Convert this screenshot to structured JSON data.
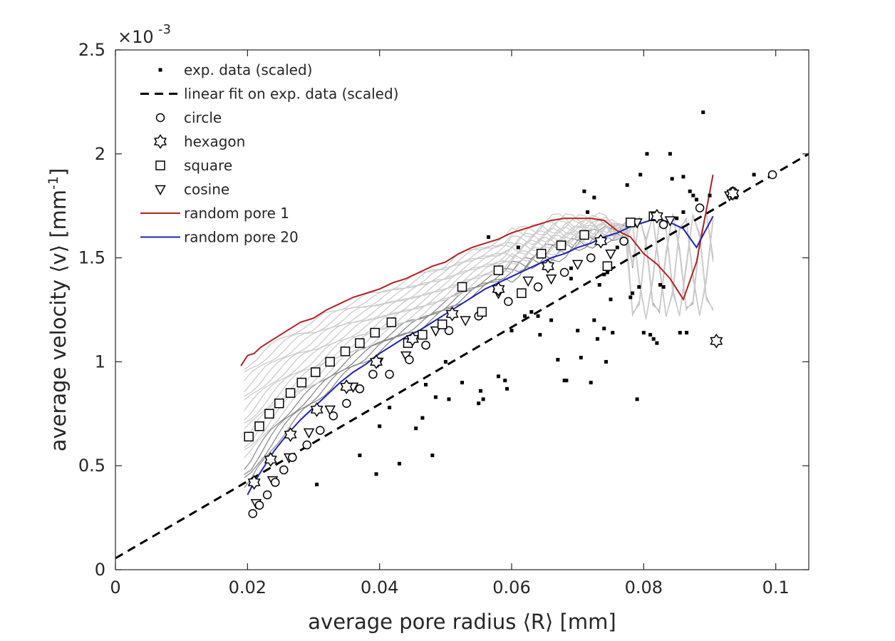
{
  "chart_data": {
    "type": "scatter",
    "xlabel": "average pore radius ⟨R⟩ [mm]",
    "ylabel_main": "average velocity ⟨v⟩ [mm",
    "ylabel_sup": "-1",
    "ylabel_end": "]",
    "exponent_prefix": "×10",
    "exponent_power": "-3",
    "xlim": [
      0,
      0.105
    ],
    "ylim": [
      0,
      2.5
    ],
    "xticks": [
      0,
      0.02,
      0.04,
      0.06,
      0.08,
      0.1
    ],
    "xtick_labels": [
      "0",
      "0.02",
      "0.04",
      "0.06",
      "0.08",
      "0.1"
    ],
    "yticks": [
      0,
      0.5,
      1,
      1.5,
      2,
      2.5
    ],
    "ytick_labels": [
      "0",
      "0.5",
      "1",
      "1.5",
      "2",
      "2.5"
    ],
    "y_scale_note": "y values in units of 1e-3",
    "legend": [
      {
        "key": "exp",
        "label": "exp. data (scaled)"
      },
      {
        "key": "fit",
        "label": "linear fit on exp. data (scaled)"
      },
      {
        "key": "circle",
        "label": "circle"
      },
      {
        "key": "hexagon",
        "label": "hexagon"
      },
      {
        "key": "square",
        "label": "square"
      },
      {
        "key": "cosine",
        "label": "cosine"
      },
      {
        "key": "rp1",
        "label": "random pore 1"
      },
      {
        "key": "rp20",
        "label": "random pore 20"
      }
    ],
    "colors": {
      "exp": "#000000",
      "fit": "#000000",
      "rp1": "#b22222",
      "rp20": "#1f24b4",
      "gray_dark": "#8c8c8c",
      "gray_light": "#cccccc"
    },
    "exp_data": [
      [
        0.0305,
        0.41
      ],
      [
        0.037,
        0.55
      ],
      [
        0.0395,
        0.46
      ],
      [
        0.04,
        0.69
      ],
      [
        0.0415,
        0.78
      ],
      [
        0.043,
        0.51
      ],
      [
        0.0445,
        1.01
      ],
      [
        0.0455,
        0.68
      ],
      [
        0.0465,
        0.73
      ],
      [
        0.047,
        0.89
      ],
      [
        0.048,
        0.55
      ],
      [
        0.0485,
        0.83
      ],
      [
        0.05,
        1.0
      ],
      [
        0.0505,
        0.82
      ],
      [
        0.0525,
        0.9
      ],
      [
        0.055,
        0.8
      ],
      [
        0.0553,
        0.86
      ],
      [
        0.0557,
        0.82
      ],
      [
        0.0565,
        1.6
      ],
      [
        0.058,
        0.93
      ],
      [
        0.059,
        0.91
      ],
      [
        0.0593,
        0.87
      ],
      [
        0.06,
        1.15
      ],
      [
        0.061,
        1.55
      ],
      [
        0.062,
        1.22
      ],
      [
        0.063,
        1.24
      ],
      [
        0.064,
        1.22
      ],
      [
        0.0643,
        1.13
      ],
      [
        0.065,
        1.45
      ],
      [
        0.066,
        1.2
      ],
      [
        0.067,
        1.01
      ],
      [
        0.068,
        0.91
      ],
      [
        0.0683,
        0.91
      ],
      [
        0.069,
        1.4
      ],
      [
        0.07,
        1.15
      ],
      [
        0.0705,
        1.02
      ],
      [
        0.071,
        1.82
      ],
      [
        0.072,
        0.9
      ],
      [
        0.0725,
        1.2
      ],
      [
        0.073,
        1.11
      ],
      [
        0.0733,
        1.37
      ],
      [
        0.074,
        1.42
      ],
      [
        0.0743,
        1.0
      ],
      [
        0.075,
        1.3
      ],
      [
        0.0753,
        1.14
      ],
      [
        0.076,
        1.55
      ],
      [
        0.0775,
        1.85
      ],
      [
        0.078,
        1.31
      ],
      [
        0.0783,
        1.33
      ],
      [
        0.079,
        0.82
      ],
      [
        0.0793,
        1.36
      ],
      [
        0.0795,
        1.9
      ],
      [
        0.08,
        1.14
      ],
      [
        0.0805,
        2.0
      ],
      [
        0.081,
        1.13
      ],
      [
        0.0815,
        1.11
      ],
      [
        0.082,
        1.09
      ],
      [
        0.0825,
        1.37
      ],
      [
        0.083,
        1.36
      ],
      [
        0.084,
        2.0
      ],
      [
        0.0843,
        1.88
      ],
      [
        0.085,
        1.69
      ],
      [
        0.0855,
        1.14
      ],
      [
        0.086,
        1.72
      ],
      [
        0.0865,
        1.14
      ],
      [
        0.087,
        1.82
      ],
      [
        0.0875,
        1.8
      ],
      [
        0.088,
        1.78
      ],
      [
        0.089,
        2.2
      ],
      [
        0.09,
        1.8
      ],
      [
        0.074,
        1.16
      ],
      [
        0.0745,
        1.43
      ],
      [
        0.069,
        1.45
      ],
      [
        0.0715,
        1.72
      ],
      [
        0.0725,
        1.79
      ],
      [
        0.086,
        1.89
      ],
      [
        0.094,
        1.79
      ],
      [
        0.0967,
        1.9
      ]
    ],
    "fit_line": {
      "x": [
        0,
        0.105
      ],
      "y": [
        0.055,
        2.0
      ]
    },
    "circle": [
      [
        0.0208,
        0.27
      ],
      [
        0.0218,
        0.31
      ],
      [
        0.023,
        0.36
      ],
      [
        0.0242,
        0.42
      ],
      [
        0.0255,
        0.48
      ],
      [
        0.0268,
        0.54
      ],
      [
        0.029,
        0.6
      ],
      [
        0.031,
        0.67
      ],
      [
        0.033,
        0.74
      ],
      [
        0.035,
        0.8
      ],
      [
        0.037,
        0.87
      ],
      [
        0.039,
        0.94
      ],
      [
        0.0415,
        0.94
      ],
      [
        0.0445,
        1.01
      ],
      [
        0.047,
        1.08
      ],
      [
        0.0505,
        1.15
      ],
      [
        0.055,
        1.22
      ],
      [
        0.0595,
        1.29
      ],
      [
        0.064,
        1.36
      ],
      [
        0.068,
        1.43
      ],
      [
        0.072,
        1.5
      ],
      [
        0.077,
        1.58
      ],
      [
        0.083,
        1.66
      ],
      [
        0.0885,
        1.74
      ],
      [
        0.0935,
        1.82
      ],
      [
        0.0995,
        1.9
      ]
    ],
    "hexagon": [
      [
        0.021,
        0.42
      ],
      [
        0.0235,
        0.53
      ],
      [
        0.0265,
        0.65
      ],
      [
        0.0305,
        0.77
      ],
      [
        0.035,
        0.88
      ],
      [
        0.0395,
        1.0
      ],
      [
        0.045,
        1.11
      ],
      [
        0.051,
        1.23
      ],
      [
        0.058,
        1.35
      ],
      [
        0.0655,
        1.46
      ],
      [
        0.0735,
        1.58
      ],
      [
        0.082,
        1.7
      ],
      [
        0.0935,
        1.81
      ],
      [
        0.091,
        1.1
      ]
    ],
    "square": [
      [
        0.0202,
        0.64
      ],
      [
        0.0218,
        0.69
      ],
      [
        0.0233,
        0.75
      ],
      [
        0.0248,
        0.8
      ],
      [
        0.0265,
        0.85
      ],
      [
        0.0282,
        0.9
      ],
      [
        0.0303,
        0.95
      ],
      [
        0.0325,
        1.0
      ],
      [
        0.0348,
        1.05
      ],
      [
        0.037,
        1.09
      ],
      [
        0.0393,
        1.14
      ],
      [
        0.0418,
        1.19
      ],
      [
        0.0443,
        1.09
      ],
      [
        0.0465,
        1.13
      ],
      [
        0.0495,
        1.18
      ],
      [
        0.0525,
        1.36
      ],
      [
        0.0555,
        1.24
      ],
      [
        0.058,
        1.44
      ],
      [
        0.0615,
        1.33
      ],
      [
        0.0645,
        1.52
      ],
      [
        0.0675,
        1.56
      ],
      [
        0.071,
        1.61
      ],
      [
        0.0745,
        1.46
      ],
      [
        0.078,
        1.67
      ],
      [
        0.0815,
        1.7
      ]
    ],
    "cosine": [
      [
        0.0213,
        0.32
      ],
      [
        0.0238,
        0.43
      ],
      [
        0.0263,
        0.54
      ],
      [
        0.0293,
        0.66
      ],
      [
        0.0325,
        0.77
      ],
      [
        0.036,
        0.88
      ],
      [
        0.0398,
        1.0
      ],
      [
        0.044,
        1.03
      ],
      [
        0.0485,
        1.15
      ],
      [
        0.053,
        1.2
      ],
      [
        0.058,
        1.33
      ],
      [
        0.0625,
        1.39
      ],
      [
        0.066,
        1.4
      ],
      [
        0.07,
        1.47
      ],
      [
        0.075,
        1.52
      ],
      [
        0.079,
        1.67
      ],
      [
        0.084,
        1.68
      ],
      [
        0.093,
        1.8
      ]
    ],
    "random_pore_1": {
      "x": [
        0.019,
        0.02,
        0.021,
        0.022,
        0.024,
        0.026,
        0.028,
        0.03,
        0.032,
        0.034,
        0.036,
        0.038,
        0.04,
        0.042,
        0.044,
        0.046,
        0.048,
        0.05,
        0.052,
        0.054,
        0.056,
        0.058,
        0.06,
        0.062,
        0.064,
        0.066,
        0.068,
        0.07,
        0.072,
        0.074,
        0.076,
        0.078,
        0.08,
        0.082,
        0.084,
        0.086,
        0.088,
        0.0905
      ],
      "y": [
        0.98,
        1.03,
        1.04,
        1.07,
        1.11,
        1.15,
        1.19,
        1.21,
        1.25,
        1.28,
        1.31,
        1.33,
        1.35,
        1.38,
        1.4,
        1.43,
        1.46,
        1.48,
        1.52,
        1.55,
        1.57,
        1.59,
        1.62,
        1.64,
        1.66,
        1.68,
        1.69,
        1.69,
        1.69,
        1.68,
        1.63,
        1.6,
        1.52,
        1.47,
        1.4,
        1.3,
        1.48,
        1.9
      ]
    },
    "random_pore_20": {
      "x": [
        0.02,
        0.021,
        0.022,
        0.024,
        0.026,
        0.028,
        0.03,
        0.032,
        0.034,
        0.036,
        0.038,
        0.04,
        0.042,
        0.044,
        0.046,
        0.048,
        0.05,
        0.052,
        0.054,
        0.056,
        0.058,
        0.06,
        0.062,
        0.064,
        0.066,
        0.068,
        0.07,
        0.072,
        0.074,
        0.076,
        0.078,
        0.08,
        0.082,
        0.084,
        0.086,
        0.088,
        0.0905
      ],
      "y": [
        0.36,
        0.42,
        0.47,
        0.57,
        0.65,
        0.72,
        0.78,
        0.84,
        0.9,
        0.95,
        0.99,
        1.04,
        1.08,
        1.12,
        1.15,
        1.19,
        1.23,
        1.27,
        1.31,
        1.35,
        1.38,
        1.41,
        1.44,
        1.47,
        1.5,
        1.52,
        1.55,
        1.57,
        1.6,
        1.62,
        1.65,
        1.67,
        1.69,
        1.67,
        1.64,
        1.55,
        1.7
      ]
    },
    "gray_curve_count": 18
  }
}
